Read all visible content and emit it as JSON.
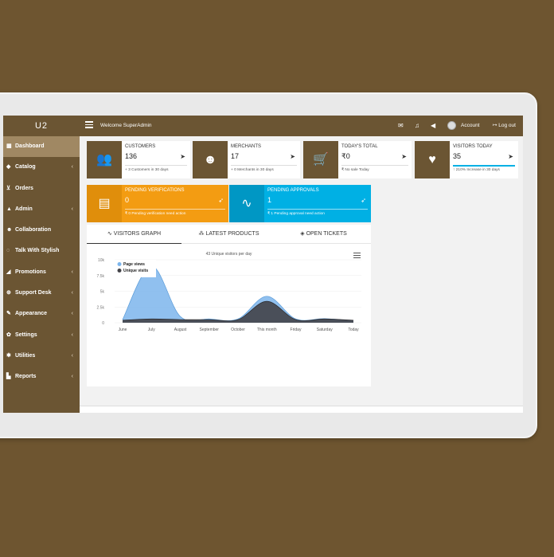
{
  "app": {
    "brand": "U2"
  },
  "topbar": {
    "welcome": "Welcome SuperAdmin",
    "account_label": "Account",
    "logout_label": "Log out"
  },
  "sidebar": {
    "items": [
      {
        "label": "Dashboard",
        "icon": "grid-icon",
        "glyph": "▦",
        "chevron": ""
      },
      {
        "label": "Catalog",
        "icon": "tag-icon",
        "glyph": "◆",
        "chevron": "‹"
      },
      {
        "label": "Orders",
        "icon": "cart-icon",
        "glyph": "⊻",
        "chevron": ""
      },
      {
        "label": "Admin",
        "icon": "lock-icon",
        "glyph": "▲",
        "chevron": "‹"
      },
      {
        "label": "Collaboration",
        "icon": "users-icon",
        "glyph": "☻",
        "chevron": ""
      },
      {
        "label": "Talk With Stylish",
        "icon": "chat-icon",
        "glyph": "◌",
        "chevron": ""
      },
      {
        "label": "Promotions",
        "icon": "send-icon",
        "glyph": "◢",
        "chevron": "‹"
      },
      {
        "label": "Support Desk",
        "icon": "lifebuoy-icon",
        "glyph": "⊕",
        "chevron": "‹"
      },
      {
        "label": "Appearance",
        "icon": "brush-icon",
        "glyph": "✎",
        "chevron": "‹"
      },
      {
        "label": "Settings",
        "icon": "cogs-icon",
        "glyph": "✿",
        "chevron": "‹"
      },
      {
        "label": "Utilities",
        "icon": "gear-icon",
        "glyph": "✱",
        "chevron": "‹"
      },
      {
        "label": "Reports",
        "icon": "book-icon",
        "glyph": "▙",
        "chevron": "‹"
      }
    ]
  },
  "stats": [
    {
      "label": "CUSTOMERS",
      "value": "136",
      "note": "+ 3 Customers in 30 days",
      "icon": "users-icon",
      "glyph": "👥"
    },
    {
      "label": "MERCHANTS",
      "value": "17",
      "note": "+ 0 Merchants in 30 days",
      "icon": "merchants-icon",
      "glyph": "☻"
    },
    {
      "label": "TODAY'S TOTAL",
      "value": "₹0",
      "note": "₹ No sale Today",
      "icon": "cart-icon",
      "glyph": "🛒"
    },
    {
      "label": "VISITORS TODAY",
      "value": "35",
      "note": "↑ 210% Increase in 30 days",
      "icon": "heart-icon",
      "glyph": "♥"
    }
  ],
  "pending": [
    {
      "label": "PENDING VERIFICATIONS",
      "value": "0",
      "note": "₹ 0 Pending verification need action",
      "icon": "inbox-icon",
      "glyph": "▤",
      "color": "#f39c12"
    },
    {
      "label": "PENDING APPROVALS",
      "value": "1",
      "note": "₹ 1 Pending approval need action",
      "icon": "pulse-icon",
      "glyph": "∿",
      "color": "#00b0e4"
    }
  ],
  "tabs": [
    {
      "label": "VISITORS GRAPH",
      "icon": "∿"
    },
    {
      "label": "LATEST PRODUCTS",
      "icon": "⁂"
    },
    {
      "label": "OPEN TICKETS",
      "icon": "◈"
    }
  ],
  "chart_data": {
    "type": "area",
    "title": "43 Unique visitors per day",
    "categories": [
      "June",
      "July",
      "August",
      "September",
      "October",
      "This month",
      "Friday",
      "Saturday",
      "Today"
    ],
    "ylim": [
      0,
      10000
    ],
    "yticks": [
      "0",
      "2.5k",
      "5k",
      "7.5k",
      "10k"
    ],
    "legend_position": "top-left",
    "series": [
      {
        "name": "Page views",
        "color": "#7cb5ec",
        "values": [
          500,
          9000,
          1000,
          600,
          600,
          4200,
          600,
          650,
          300
        ]
      },
      {
        "name": "Unique visits",
        "color": "#434348",
        "values": [
          400,
          600,
          500,
          500,
          500,
          3400,
          500,
          600,
          400
        ]
      }
    ]
  }
}
